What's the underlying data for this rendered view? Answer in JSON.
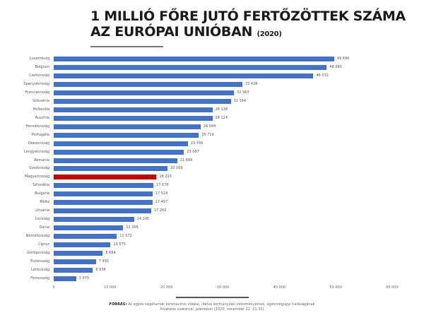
{
  "header": {
    "title_line1": "1 MILLIÓ FŐRE JUTÓ FERTŐZÖTTEK SZÁMA",
    "title_line2": "AZ EURÓPAI UNIÓBAN",
    "title_year": "(2020)"
  },
  "footer": {
    "source_label": "FORRÁS:",
    "source_text": "Az egyes tagállamok koronavírus oldalai, illetve kormányzati intézményeinek, egészségügyi hatóságának hivatalos csatornái, jelentései (2020. november 22. 21:31)"
  },
  "colors": {
    "bar": "#4472c4",
    "highlight": "#c00000"
  },
  "chart_data": {
    "type": "bar",
    "orientation": "horizontal",
    "title": "1 MILLIÓ FŐRE JUTÓ FERTŐZÖTTEK SZÁMA AZ EURÓPAI UNIÓBAN (2020)",
    "xlabel": "",
    "ylabel": "",
    "xlim": [
      0,
      60000
    ],
    "x_ticks": [
      "0",
      "10 000",
      "20 000",
      "30 000",
      "40 000",
      "50 000",
      "60 000"
    ],
    "grid": false,
    "legend": null,
    "highlighted_category": "Magyarország",
    "categories": [
      "Luxemburg",
      "Belgium",
      "Csehország",
      "Spanyolország",
      "Franciaország",
      "Szlovénia",
      "Hollandia",
      "Ausztria",
      "Horvátország",
      "Portugália",
      "Olaszország",
      "Lengyelország",
      "Románia",
      "Svédország",
      "Magyarország",
      "Szlovákia",
      "Bulgária",
      "Málta",
      "Litvánia",
      "Írország",
      "Dánia",
      "Németország",
      "Ciprus",
      "Görögország",
      "Észtország",
      "Lettország",
      "Finnország"
    ],
    "values": [
      49690,
      48380,
      46032,
      33438,
      31963,
      31384,
      28138,
      28124,
      26044,
      25719,
      23766,
      23087,
      21889,
      20169,
      18215,
      17676,
      17524,
      17497,
      17260,
      14245,
      12306,
      11172,
      10075,
      8684,
      7491,
      6938,
      3970
    ],
    "value_labels": [
      "49 690",
      "48 380",
      "46 032",
      "33 438",
      "31 963",
      "31 384",
      "28 138",
      "28 124",
      "26 044",
      "25 719",
      "23 766",
      "23 087",
      "21 889",
      "20 169",
      "18 215",
      "17 676",
      "17 524",
      "17 497",
      "17 260",
      "14 245",
      "12 306",
      "11 172",
      "10 075",
      "8 684",
      "7 491",
      "6 938",
      "3 970"
    ]
  }
}
